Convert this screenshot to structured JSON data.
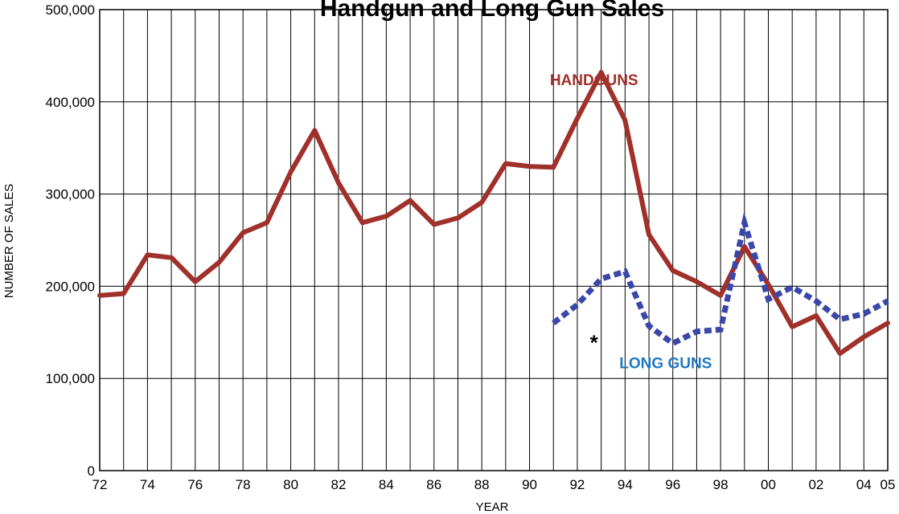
{
  "chart_data": {
    "type": "line",
    "title": "Handgun and Long Gun Sales",
    "xlabel": "YEAR",
    "ylabel": "NUMBER OF SALES",
    "xlim": [
      1972,
      2005
    ],
    "ylim": [
      0,
      500000
    ],
    "y_ticks": [
      0,
      100000,
      200000,
      300000,
      400000,
      500000
    ],
    "y_tick_labels": [
      "0",
      "100,000",
      "200,000",
      "300,000",
      "400,000",
      "500,000"
    ],
    "x_ticks": [
      1972,
      1974,
      1976,
      1978,
      1980,
      1982,
      1984,
      1986,
      1988,
      1990,
      1992,
      1994,
      1996,
      1998,
      2000,
      2002,
      2004,
      2005
    ],
    "x_tick_labels": [
      "72",
      "74",
      "76",
      "78",
      "80",
      "82",
      "84",
      "86",
      "88",
      "90",
      "92",
      "94",
      "96",
      "98",
      "00",
      "02",
      "04",
      "05"
    ],
    "grid": true,
    "legend": "none",
    "series": [
      {
        "name": "HANDGUNS",
        "color": "#a0302a",
        "style": "solid",
        "x": [
          1972,
          1973,
          1974,
          1975,
          1976,
          1977,
          1978,
          1979,
          1980,
          1981,
          1982,
          1983,
          1984,
          1985,
          1986,
          1987,
          1988,
          1989,
          1990,
          1991,
          1992,
          1993,
          1994,
          1995,
          1996,
          1997,
          1998,
          1999,
          2000,
          2001,
          2002,
          2003,
          2004,
          2005
        ],
        "values": [
          190000,
          192000,
          234000,
          231000,
          205000,
          226000,
          258000,
          269000,
          324000,
          369000,
          312000,
          269000,
          276000,
          293000,
          267000,
          274000,
          291000,
          333000,
          330000,
          329000,
          382000,
          432000,
          380000,
          256000,
          217000,
          205000,
          190000,
          243000,
          202000,
          156000,
          168000,
          127000,
          145000,
          160000
        ]
      },
      {
        "name": "LONG GUNS",
        "color": "#3b47a8",
        "label_color": "#1f7ac4",
        "style": "dashed",
        "x": [
          1991,
          1992,
          1993,
          1994,
          1995,
          1996,
          1997,
          1998,
          1999,
          2000,
          2001,
          2002,
          2003,
          2004,
          2005
        ],
        "values": [
          160000,
          180000,
          208000,
          216000,
          157000,
          138000,
          151000,
          153000,
          269000,
          186000,
          199000,
          184000,
          164000,
          170000,
          184000
        ]
      }
    ],
    "annotations": [
      {
        "text": "HANDGUNS",
        "x": 1992.7,
        "y": 424000,
        "anchor": "middle",
        "color": "#a0302a"
      },
      {
        "text": "LONG GUNS",
        "x": 1995.7,
        "y": 117000,
        "anchor": "middle",
        "color": "#1f7ac4"
      },
      {
        "text": "*",
        "x": 1992.7,
        "y": 140000,
        "anchor": "middle",
        "color": "#000000"
      }
    ]
  }
}
